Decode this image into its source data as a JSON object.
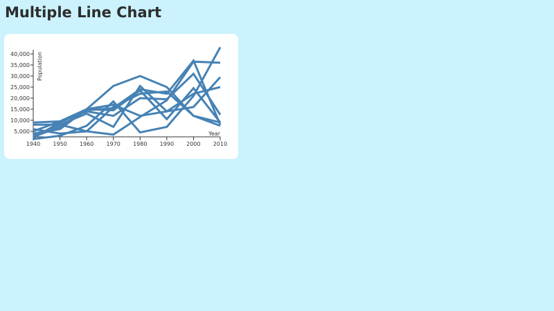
{
  "title": "Multiple Line Chart",
  "chart_data": {
    "type": "line",
    "xlabel": "Year",
    "ylabel": "Population",
    "x": [
      1940,
      1950,
      1960,
      1970,
      1980,
      1990,
      2000,
      2010
    ],
    "xlim": [
      1940,
      2010
    ],
    "ylim": [
      0,
      40000
    ],
    "xticks": [
      "1940",
      "1950",
      "1960",
      "1970",
      "1980",
      "1990",
      "2000",
      "2010"
    ],
    "yticks": [
      "5,000",
      "10,000",
      "15,000",
      "20,000",
      "25,000",
      "30,000",
      "35,000",
      "40,000"
    ],
    "grid": false,
    "color": "#4682b4",
    "series": [
      {
        "values": [
          5000,
          9500,
          15000,
          25500,
          30000,
          25000,
          12000,
          9000
        ]
      },
      {
        "values": [
          2000,
          9000,
          14500,
          15500,
          24000,
          22000,
          37000,
          8000
        ]
      },
      {
        "values": [
          9000,
          9500,
          14000,
          12000,
          20000,
          19500,
          31000,
          12500
        ]
      },
      {
        "values": [
          8000,
          8000,
          5000,
          3500,
          11500,
          19000,
          36500,
          36000
        ]
      },
      {
        "values": [
          3000,
          8000,
          13000,
          7000,
          25500,
          14000,
          22000,
          25000
        ]
      },
      {
        "values": [
          1500,
          3000,
          7500,
          18500,
          4500,
          7000,
          21000,
          43000
        ]
      },
      {
        "values": [
          4000,
          6000,
          15000,
          17000,
          12000,
          14000,
          16000,
          29500
        ]
      },
      {
        "values": [
          6000,
          4000,
          5000,
          16000,
          22000,
          23000,
          12000,
          7500
        ]
      },
      {
        "values": [
          2500,
          7000,
          15000,
          14500,
          23500,
          10500,
          24500,
          9000
        ]
      }
    ]
  }
}
